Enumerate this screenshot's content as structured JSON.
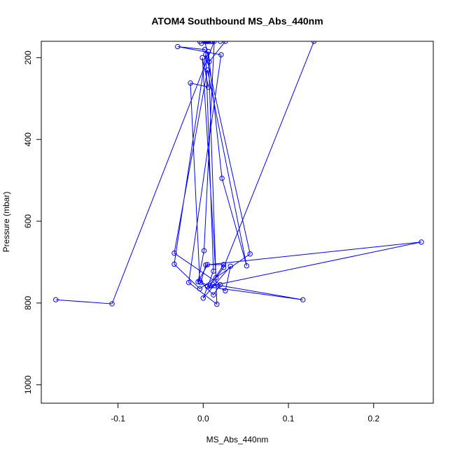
{
  "chart_data": {
    "type": "scatter",
    "title": "ATOM4 Southbound MS_Abs_440nm",
    "xlabel": "MS_Abs_440nm",
    "ylabel": "Pressure (mbar)",
    "xlim": [
      -0.19,
      0.27
    ],
    "ylim": [
      1045,
      160
    ],
    "y_inverted": true,
    "x_ticks": [
      -0.1,
      0.0,
      0.1,
      0.2
    ],
    "x_tick_labels": [
      "-0.1",
      "0.0",
      "0.1",
      "0.2"
    ],
    "y_ticks": [
      200,
      400,
      600,
      800,
      1000
    ],
    "y_tick_labels": [
      "200",
      "400",
      "600",
      "800",
      "1000"
    ],
    "grid": false,
    "legend": "none",
    "colors": {
      "series": "#0000ff",
      "axes": "#000000"
    },
    "series": [
      {
        "style": "line+points",
        "x": [
          -0.173,
          -0.107,
          0.013,
          0.001,
          -0.006,
          0.005,
          0.024,
          0.008,
          -0.003,
          0.003,
          0.256,
          0.005,
          0.117,
          0.011,
          0.026,
          0.032,
          0.0,
          0.012,
          0.003,
          -0.034,
          -0.004,
          0.055,
          0.002,
          -0.03,
          0.021,
          -0.017,
          0.016,
          0.006,
          0.022,
          0.051,
          0.005,
          -0.034,
          0.02,
          0.012,
          -0.004,
          -0.015,
          0.006,
          -0.001,
          0.015,
          0.024,
          0.13,
          -0.004,
          0.009,
          0.006,
          0.002,
          0.007,
          0.026,
          0.011,
          0.005,
          0.003,
          0.02,
          0.004,
          0.009,
          -0.002
        ],
        "y": [
          792,
          802,
          160,
          672,
          748,
          706,
          706,
          758,
          750,
          707,
          651,
          760,
          792,
          754,
          770,
          710,
          788,
          722,
          192,
          705,
          765,
          680,
          180,
          173,
          193,
          750,
          803,
          185,
          495,
          709,
          230,
          678,
          755,
          780,
          746,
          262,
          272,
          200,
          738,
          713,
          160,
          160,
          160,
          160,
          160,
          210,
          160,
          160,
          160,
          160,
          160,
          160,
          160,
          165
        ],
        "connect_order": "as-recorded"
      }
    ]
  }
}
